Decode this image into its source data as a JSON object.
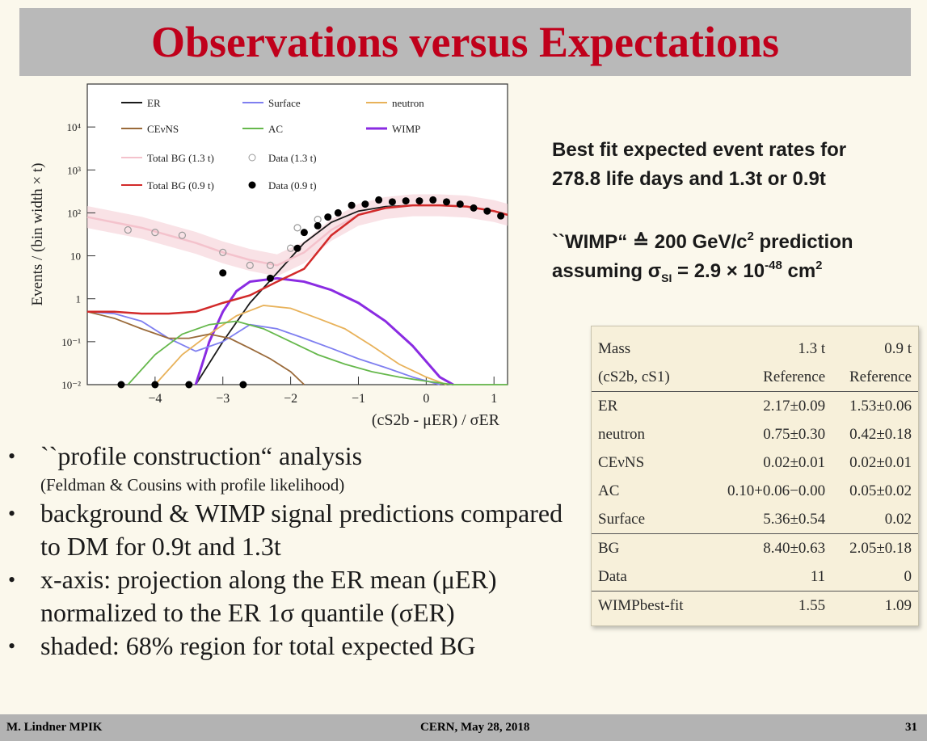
{
  "title": "Observations versus Expectations",
  "chart_data": {
    "type": "line",
    "xlabel": "(cS2b - μER) / σER",
    "ylabel": "Events / (bin width × t)",
    "xlim": [
      -5,
      1.2
    ],
    "ylim_log10": [
      -2,
      5
    ],
    "x_ticks": [
      "−4",
      "−3",
      "−2",
      "−1",
      "0",
      "1"
    ],
    "y_ticks": [
      "10⁻²",
      "10⁻¹",
      "1",
      "10",
      "10²",
      "10³",
      "10⁴"
    ],
    "legend": [
      {
        "label": "ER",
        "color": "#1a1a1a"
      },
      {
        "label": "Surface",
        "color": "#7f7ff0"
      },
      {
        "label": "neutron",
        "color": "#e8b25a"
      },
      {
        "label": "CEνNS",
        "color": "#9a6a3a"
      },
      {
        "label": "AC",
        "color": "#66b84c"
      },
      {
        "label": "WIMP",
        "color": "#8a2be2"
      },
      {
        "label": "Total BG (1.3 t)",
        "color": "#f4c2cc"
      },
      {
        "label": "Data (1.3 t)",
        "color": "#aaaaaa"
      },
      {
        "label": "Total BG (0.9 t)",
        "color": "#d22a2a"
      },
      {
        "label": "Data (0.9 t)",
        "color": "#000000"
      }
    ],
    "series": [
      {
        "name": "ER",
        "x": [
          -3.4,
          -3.0,
          -2.6,
          -2.2,
          -1.8,
          -1.4,
          -1.0,
          -0.6,
          -0.2,
          0.2,
          0.6,
          1.0,
          1.2
        ],
        "y": [
          0.01,
          0.1,
          0.8,
          4,
          20,
          60,
          110,
          140,
          150,
          150,
          140,
          110,
          90
        ]
      },
      {
        "name": "WIMP",
        "x": [
          -3.4,
          -3.2,
          -3.0,
          -2.8,
          -2.6,
          -2.2,
          -1.8,
          -1.4,
          -1.0,
          -0.6,
          -0.2,
          0.2,
          0.4
        ],
        "y": [
          0.01,
          0.1,
          0.5,
          1.5,
          2.5,
          3.0,
          2.5,
          1.6,
          0.8,
          0.3,
          0.08,
          0.015,
          0.01
        ]
      },
      {
        "name": "Surface",
        "x": [
          -5,
          -4.6,
          -4.2,
          -3.8,
          -3.4,
          -3.0,
          -2.6,
          -2.2,
          -1.8,
          -1.4,
          -1.0,
          -0.6,
          -0.2,
          0.2
        ],
        "y": [
          0.5,
          0.45,
          0.3,
          0.12,
          0.06,
          0.1,
          0.25,
          0.2,
          0.12,
          0.07,
          0.04,
          0.025,
          0.015,
          0.01
        ]
      },
      {
        "name": "neutron",
        "x": [
          -4.0,
          -3.6,
          -3.2,
          -2.8,
          -2.4,
          -2.0,
          -1.6,
          -1.2,
          -0.8,
          -0.4,
          0.0,
          0.3
        ],
        "y": [
          0.01,
          0.05,
          0.15,
          0.4,
          0.7,
          0.6,
          0.35,
          0.2,
          0.08,
          0.03,
          0.015,
          0.01
        ]
      },
      {
        "name": "CEνNS",
        "x": [
          -5,
          -4.6,
          -4.2,
          -3.8,
          -3.5,
          -3.2,
          -2.9,
          -2.6,
          -2.3,
          -2.0,
          -1.8
        ],
        "y": [
          0.5,
          0.35,
          0.2,
          0.12,
          0.12,
          0.15,
          0.12,
          0.07,
          0.04,
          0.02,
          0.01
        ]
      },
      {
        "name": "AC",
        "x": [
          -4.4,
          -4.0,
          -3.6,
          -3.2,
          -2.8,
          -2.4,
          -2.0,
          -1.6,
          -1.2,
          -0.8,
          -0.4,
          0.0,
          0.4,
          0.8,
          1.2
        ],
        "y": [
          0.01,
          0.05,
          0.15,
          0.25,
          0.3,
          0.2,
          0.1,
          0.05,
          0.03,
          0.02,
          0.015,
          0.012,
          0.01,
          0.01,
          0.01
        ]
      },
      {
        "name": "Total BG (1.3 t)",
        "x": [
          -5,
          -4.6,
          -4.2,
          -3.8,
          -3.4,
          -3.0,
          -2.6,
          -2.2,
          -1.8,
          -1.4,
          -1.0,
          -0.6,
          -0.2,
          0.2,
          0.6,
          1.0,
          1.2
        ],
        "y": [
          80,
          60,
          45,
          30,
          20,
          12,
          8,
          6,
          12,
          40,
          90,
          130,
          150,
          150,
          140,
          110,
          90
        ]
      },
      {
        "name": "Total BG (0.9 t)",
        "x": [
          -5,
          -4.6,
          -4.2,
          -3.8,
          -3.4,
          -3.0,
          -2.6,
          -2.2,
          -1.8,
          -1.4,
          -1.0,
          -0.6,
          -0.2,
          0.2,
          0.6,
          1.0,
          1.2
        ],
        "y": [
          0.5,
          0.5,
          0.45,
          0.45,
          0.5,
          0.8,
          1.2,
          2.5,
          5,
          30,
          90,
          130,
          150,
          150,
          140,
          110,
          90
        ]
      }
    ],
    "data_0_9t": [
      {
        "x": -4.5,
        "y": 0.01
      },
      {
        "x": -4.0,
        "y": 0.01
      },
      {
        "x": -3.5,
        "y": 0.01
      },
      {
        "x": -3.0,
        "y": 4
      },
      {
        "x": -2.7,
        "y": 0.01
      },
      {
        "x": -2.3,
        "y": 3
      },
      {
        "x": -1.9,
        "y": 15
      },
      {
        "x": -1.8,
        "y": 35
      },
      {
        "x": -1.6,
        "y": 50
      },
      {
        "x": -1.45,
        "y": 80
      },
      {
        "x": -1.3,
        "y": 100
      },
      {
        "x": -1.1,
        "y": 150
      },
      {
        "x": -0.9,
        "y": 160
      },
      {
        "x": -0.7,
        "y": 200
      },
      {
        "x": -0.5,
        "y": 180
      },
      {
        "x": -0.3,
        "y": 190
      },
      {
        "x": -0.1,
        "y": 190
      },
      {
        "x": 0.1,
        "y": 200
      },
      {
        "x": 0.3,
        "y": 180
      },
      {
        "x": 0.5,
        "y": 160
      },
      {
        "x": 0.7,
        "y": 130
      },
      {
        "x": 0.9,
        "y": 110
      },
      {
        "x": 1.1,
        "y": 85
      }
    ],
    "data_1_3t": [
      {
        "x": -4.4,
        "y": 40
      },
      {
        "x": -4.0,
        "y": 35
      },
      {
        "x": -3.6,
        "y": 30
      },
      {
        "x": -3.0,
        "y": 12
      },
      {
        "x": -2.6,
        "y": 6
      },
      {
        "x": -2.3,
        "y": 6
      },
      {
        "x": -2.0,
        "y": 15
      },
      {
        "x": -1.9,
        "y": 45
      },
      {
        "x": -1.6,
        "y": 70
      }
    ]
  },
  "side_text": {
    "line1": "Best fit expected event rates for",
    "line2": "278.8 life days and 1.3t or 0.9t",
    "wimp_prefix": "``WIMP“ ≙ 200 GeV/c",
    "wimp_sup": "2",
    "wimp_suffix": " prediction",
    "assume_prefix": "assuming σ",
    "assume_sub": "SI",
    "assume_mid": " = 2.9 × 10",
    "assume_sup": "-48",
    "assume_suffix": " cm",
    "assume_sup2": "2"
  },
  "bullets": [
    {
      "text": "``profile construction“ analysis",
      "small": "(Feldman & Cousins with profile likelihood)"
    },
    {
      "text": "background & WIMP signal predictions compared to DM for 0.9t and 1.3t",
      "small": ""
    },
    {
      "text": "x-axis: projection along the ER mean (μER) normalized to the ER 1σ quantile (σER)",
      "small": ""
    },
    {
      "text": "shaded: 68% region for total expected BG",
      "small": ""
    }
  ],
  "table": {
    "head": [
      "Mass",
      "1.3 t",
      "0.9 t"
    ],
    "head2": [
      "(cS2b, cS1)",
      "Reference",
      "Reference"
    ],
    "rows": [
      [
        "ER",
        "2.17±0.09",
        "1.53±0.06"
      ],
      [
        "neutron",
        "0.75±0.30",
        "0.42±0.18"
      ],
      [
        "CEνNS",
        "0.02±0.01",
        "0.02±0.01"
      ],
      [
        "AC",
        "0.10+0.06−0.00",
        "0.05±0.02"
      ],
      [
        "Surface",
        "5.36±0.54",
        "0.02"
      ]
    ],
    "bg": [
      "BG",
      "8.40±0.63",
      "2.05±0.18"
    ],
    "data": [
      "Data",
      "11",
      "0"
    ],
    "wimp": [
      "WIMPbest-fit",
      "1.55",
      "1.09"
    ]
  },
  "footer": {
    "left": "M. Lindner MPIK",
    "center": "CERN, May 28, 2018",
    "right": "31"
  }
}
